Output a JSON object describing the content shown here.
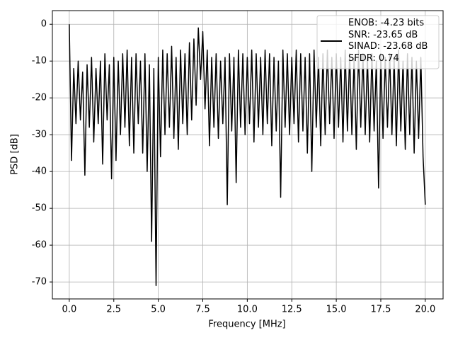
{
  "chart_data": {
    "type": "line",
    "xlabel": "Frequency [MHz]",
    "ylabel": "PSD [dB]",
    "xlim": [
      -0.95,
      21.0
    ],
    "ylim": [
      -74.6,
      3.7
    ],
    "xticks": [
      {
        "value": 0,
        "label": "0.0"
      },
      2.5,
      {
        "value": 5,
        "label": "5.0"
      },
      7.5,
      {
        "value": 10,
        "label": "10.0"
      },
      12.5,
      {
        "value": 15,
        "label": "15.0"
      },
      17.5,
      {
        "value": 20,
        "label": "20.0"
      }
    ],
    "yticks": [
      0,
      -10,
      -20,
      -30,
      -40,
      -50,
      -60,
      -70
    ],
    "grid": true,
    "legend": "upper right",
    "x": [
      0,
      0.125,
      0.25,
      0.375,
      0.5,
      0.625,
      0.75,
      0.875,
      1,
      1.125,
      1.25,
      1.375,
      1.5,
      1.625,
      1.75,
      1.875,
      2,
      2.125,
      2.25,
      2.375,
      2.5,
      2.625,
      2.75,
      2.875,
      3,
      3.125,
      3.25,
      3.375,
      3.5,
      3.625,
      3.75,
      3.875,
      4,
      4.125,
      4.25,
      4.375,
      4.5,
      4.625,
      4.75,
      4.875,
      5,
      5.125,
      5.25,
      5.375,
      5.5,
      5.625,
      5.75,
      5.875,
      6,
      6.125,
      6.25,
      6.375,
      6.5,
      6.625,
      6.75,
      6.875,
      7,
      7.125,
      7.25,
      7.375,
      7.5,
      7.625,
      7.75,
      7.875,
      8,
      8.125,
      8.25,
      8.375,
      8.5,
      8.625,
      8.75,
      8.875,
      9,
      9.125,
      9.25,
      9.375,
      9.5,
      9.625,
      9.75,
      9.875,
      10,
      10.125,
      10.25,
      10.375,
      10.5,
      10.625,
      10.75,
      10.875,
      11,
      11.125,
      11.25,
      11.375,
      11.5,
      11.625,
      11.75,
      11.875,
      12,
      12.125,
      12.25,
      12.375,
      12.5,
      12.625,
      12.75,
      12.875,
      13,
      13.125,
      13.25,
      13.375,
      13.5,
      13.625,
      13.75,
      13.875,
      14,
      14.125,
      14.25,
      14.375,
      14.5,
      14.625,
      14.75,
      14.875,
      15,
      15.125,
      15.25,
      15.375,
      15.5,
      15.625,
      15.75,
      15.875,
      16,
      16.125,
      16.25,
      16.375,
      16.5,
      16.625,
      16.75,
      16.875,
      17,
      17.125,
      17.25,
      17.375,
      17.5,
      17.625,
      17.75,
      17.875,
      18,
      18.125,
      18.25,
      18.375,
      18.5,
      18.625,
      18.75,
      18.875,
      19,
      19.125,
      19.25,
      19.375,
      19.5,
      19.625,
      19.75,
      19.875,
      20
    ],
    "series": [
      {
        "name": "ENOB: -4.23 bits\nSNR: -23.65 dB\nSINAD: -23.68 dB\nSFDR: 0.74",
        "color": "#000000",
        "values": [
          0,
          -37,
          -12,
          -27,
          -10,
          -26,
          -13,
          -41,
          -11,
          -28,
          -9,
          -32,
          -12,
          -27,
          -10,
          -38,
          -8,
          -26,
          -11,
          -42,
          -9,
          -37,
          -10,
          -30,
          -8,
          -28,
          -7,
          -33,
          -9,
          -35,
          -8,
          -27,
          -10,
          -35,
          -8,
          -40,
          -11,
          -59,
          -12,
          -71,
          -9,
          -36,
          -7,
          -30,
          -8,
          -28,
          -6,
          -31,
          -9,
          -34,
          -7,
          -27,
          -8,
          -30,
          -5,
          -26,
          -4,
          -22,
          -1,
          -15,
          -2,
          -23,
          -7,
          -33,
          -9,
          -28,
          -8,
          -31,
          -10,
          -27,
          -9,
          -49,
          -8,
          -29,
          -9,
          -43,
          -7,
          -28,
          -8,
          -30,
          -9,
          -27,
          -7,
          -32,
          -8,
          -28,
          -9,
          -30,
          -7,
          -27,
          -8,
          -33,
          -9,
          -29,
          -10,
          -47,
          -7,
          -28,
          -8,
          -30,
          -9,
          -27,
          -7,
          -32,
          -8,
          -29,
          -9,
          -35,
          -8,
          -40,
          -7,
          -28,
          -9,
          -33,
          -8,
          -30,
          -7,
          -27,
          -9,
          -31,
          -8,
          -28,
          -9,
          -32,
          -7,
          -29,
          -8,
          -30,
          -9,
          -34,
          -7,
          -28,
          -8,
          -30,
          -9,
          -32,
          -8,
          -29,
          -10,
          -44.5,
          -8,
          -31,
          -9,
          -28,
          -8,
          -30,
          -9,
          -33,
          -7,
          -29,
          -10,
          -34,
          -8,
          -30,
          -9,
          -35,
          -10,
          -31,
          -9,
          -36,
          -49
        ]
      }
    ]
  }
}
